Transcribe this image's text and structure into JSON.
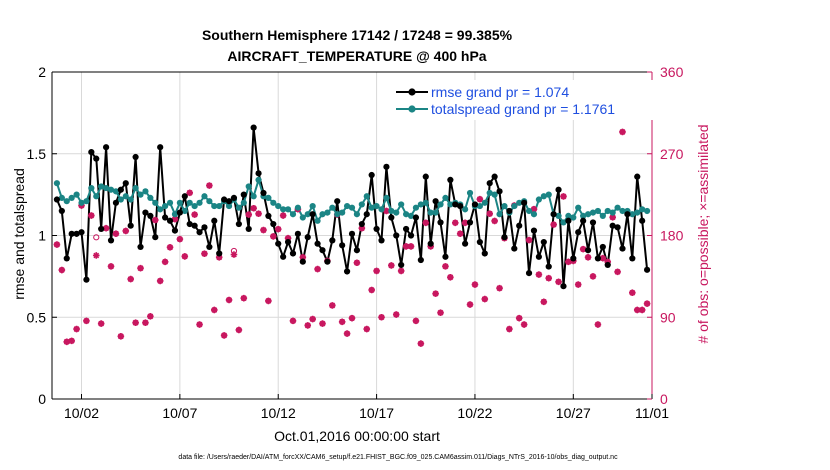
{
  "chart_data": {
    "type": "line",
    "title": "Southern Hemisphere 17142 / 17248 = 99.385%",
    "subtitle": "AIRCRAFT_TEMPERATURE @ 400 hPa",
    "xlabel": "Oct.01,2016 00:00:00 start",
    "ylabel": "rmse and totalspread",
    "y2label": "# of obs: o=possible; ×=assimilated",
    "footnote": "data file: /Users/raeder/DAI/ATM_forcXX/CAM6_setup/f.e21.FHIST_BGC.f09_025.CAM6assim.011/Diags_NTrS_2016-10/obs_diag_output.nc",
    "xlim": [
      0.5,
      31.0
    ],
    "ylim": [
      0,
      2
    ],
    "y2lim": [
      0,
      360
    ],
    "grid": true,
    "legend_position": "top-right",
    "x_ticks": [
      {
        "value": 2,
        "label": "10/02"
      },
      {
        "value": 7,
        "label": "10/07"
      },
      {
        "value": 12,
        "label": "10/12"
      },
      {
        "value": 17,
        "label": "10/17"
      },
      {
        "value": 22,
        "label": "10/22"
      },
      {
        "value": 27,
        "label": "10/27"
      },
      {
        "value": 31,
        "label": "11/01"
      }
    ],
    "y_ticks": [
      "0",
      "0.5",
      "1",
      "1.5",
      "2"
    ],
    "y2_ticks": [
      "0",
      "90",
      "180",
      "270",
      "360"
    ],
    "colors": {
      "rmse": "#000000",
      "totalspread": "#1b8585",
      "obs": "#c8175f",
      "legend_text": "#1f4fe0"
    },
    "series": [
      {
        "name": "rmse grand pr = 1.074",
        "color": "#000000",
        "x": [
          0.75,
          1.0,
          1.25,
          1.5,
          1.75,
          2.0,
          2.25,
          2.5,
          2.75,
          3.0,
          3.25,
          3.5,
          3.75,
          4.0,
          4.25,
          4.5,
          4.75,
          5.0,
          5.25,
          5.5,
          5.75,
          6.0,
          6.25,
          6.5,
          6.75,
          7.0,
          7.25,
          7.5,
          7.75,
          8.0,
          8.25,
          8.5,
          8.75,
          9.0,
          9.25,
          9.5,
          9.75,
          10.0,
          10.25,
          10.5,
          10.75,
          11.0,
          11.25,
          11.5,
          11.75,
          12.0,
          12.25,
          12.5,
          12.75,
          13.0,
          13.25,
          13.5,
          13.75,
          14.0,
          14.25,
          14.5,
          14.75,
          15.0,
          15.25,
          15.5,
          15.75,
          16.0,
          16.25,
          16.5,
          16.75,
          17.0,
          17.25,
          17.5,
          17.75,
          18.0,
          18.25,
          18.5,
          18.75,
          19.0,
          19.25,
          19.5,
          19.75,
          20.0,
          20.25,
          20.5,
          20.75,
          21.0,
          21.25,
          21.5,
          21.75,
          22.0,
          22.25,
          22.5,
          22.75,
          23.0,
          23.25,
          23.5,
          23.75,
          24.0,
          24.25,
          24.5,
          24.75,
          25.0,
          25.25,
          25.5,
          25.75,
          26.0,
          26.25,
          26.5,
          26.75,
          27.0,
          27.25,
          27.5,
          27.75,
          28.0,
          28.25,
          28.5,
          28.75,
          29.0,
          29.25,
          29.5,
          29.75,
          30.0,
          30.25,
          30.5,
          30.75
        ],
        "values": [
          1.22,
          1.15,
          0.86,
          1.01,
          1.01,
          1.02,
          0.73,
          1.51,
          1.47,
          1.04,
          1.54,
          0.97,
          1.2,
          1.28,
          1.32,
          1.06,
          1.48,
          0.93,
          1.14,
          1.12,
          0.99,
          1.54,
          1.11,
          1.09,
          1.03,
          1.14,
          1.24,
          1.07,
          1.06,
          1.02,
          1.05,
          0.93,
          1.09,
          0.89,
          1.22,
          1.21,
          1.23,
          1.07,
          1.25,
          1.04,
          1.66,
          1.38,
          1.26,
          1.12,
          1.07,
          0.95,
          0.87,
          0.96,
          0.89,
          1.01,
          0.84,
          0.99,
          1.13,
          0.95,
          0.91,
          0.84,
          0.97,
          1.21,
          0.94,
          0.78,
          1.01,
          0.91,
          1.07,
          1.13,
          1.37,
          1.04,
          0.97,
          1.42,
          1.11,
          1.0,
          0.82,
          1.04,
          1.0,
          1.11,
          0.85,
          1.36,
          0.95,
          1.21,
          1.08,
          0.87,
          1.34,
          1.19,
          1.18,
          0.95,
          1.08,
          1.19,
          0.96,
          0.89,
          1.32,
          1.36,
          1.27,
          0.99,
          1.15,
          0.92,
          1.06,
          1.2,
          0.77,
          1.03,
          0.87,
          0.96,
          0.81,
          1.13,
          1.28,
          0.69,
          1.09,
          0.86,
          1.02,
          1.09,
          0.91,
          1.08,
          0.86,
          0.93,
          0.82,
          1.06,
          1.05,
          0.92,
          1.13,
          0.86,
          1.36,
          1.09,
          0.79
        ],
        "markers": "filled-circle"
      },
      {
        "name": "totalspread grand pr = 1.1761",
        "color": "#1b8585",
        "x": [
          0.75,
          1.0,
          1.25,
          1.5,
          1.75,
          2.0,
          2.25,
          2.5,
          2.75,
          3.0,
          3.25,
          3.5,
          3.75,
          4.0,
          4.25,
          4.5,
          4.75,
          5.0,
          5.25,
          5.5,
          5.75,
          6.0,
          6.25,
          6.5,
          6.75,
          7.0,
          7.25,
          7.5,
          7.75,
          8.0,
          8.25,
          8.5,
          8.75,
          9.0,
          9.25,
          9.5,
          9.75,
          10.0,
          10.25,
          10.5,
          10.75,
          11.0,
          11.25,
          11.5,
          11.75,
          12.0,
          12.25,
          12.5,
          12.75,
          13.0,
          13.25,
          13.5,
          13.75,
          14.0,
          14.25,
          14.5,
          14.75,
          15.0,
          15.25,
          15.5,
          15.75,
          16.0,
          16.25,
          16.5,
          16.75,
          17.0,
          17.25,
          17.5,
          17.75,
          18.0,
          18.25,
          18.5,
          18.75,
          19.0,
          19.25,
          19.5,
          19.75,
          20.0,
          20.25,
          20.5,
          20.75,
          21.0,
          21.25,
          21.5,
          21.75,
          22.0,
          22.25,
          22.5,
          22.75,
          23.0,
          23.25,
          23.5,
          23.75,
          24.0,
          24.25,
          24.5,
          24.75,
          25.0,
          25.25,
          25.5,
          25.75,
          26.0,
          26.25,
          26.5,
          26.75,
          27.0,
          27.25,
          27.5,
          27.75,
          28.0,
          28.25,
          28.5,
          28.75,
          29.0,
          29.25,
          29.5,
          29.75,
          30.0,
          30.25,
          30.5,
          30.75
        ],
        "values": [
          1.32,
          1.23,
          1.21,
          1.23,
          1.25,
          1.2,
          1.21,
          1.29,
          1.24,
          1.3,
          1.29,
          1.28,
          1.27,
          1.22,
          1.24,
          1.22,
          1.29,
          1.25,
          1.27,
          1.23,
          1.2,
          1.16,
          1.18,
          1.2,
          1.13,
          1.2,
          1.15,
          1.2,
          1.18,
          1.2,
          1.24,
          1.21,
          1.18,
          1.18,
          1.21,
          1.18,
          1.22,
          1.17,
          1.2,
          1.3,
          1.24,
          1.34,
          1.24,
          1.23,
          1.2,
          1.18,
          1.16,
          1.16,
          1.13,
          1.17,
          1.11,
          1.13,
          1.18,
          1.09,
          1.13,
          1.14,
          1.17,
          1.13,
          1.14,
          1.18,
          1.17,
          1.13,
          1.19,
          1.24,
          1.17,
          1.18,
          1.16,
          1.23,
          1.15,
          1.14,
          1.19,
          1.13,
          1.12,
          1.17,
          1.19,
          1.2,
          1.14,
          1.14,
          1.19,
          1.23,
          1.19,
          1.2,
          1.19,
          1.16,
          1.26,
          1.18,
          1.18,
          1.2,
          1.26,
          1.25,
          1.13,
          1.18,
          1.14,
          1.18,
          1.2,
          1.21,
          1.15,
          1.13,
          1.22,
          1.24,
          1.25,
          1.13,
          1.12,
          1.08,
          1.12,
          1.11,
          1.17,
          1.12,
          1.13,
          1.14,
          1.15,
          1.12,
          1.15,
          1.14,
          1.17,
          1.15,
          1.15,
          1.13,
          1.14,
          1.16,
          1.15
        ],
        "markers": "filled-circle"
      },
      {
        "name": "# of obs assimilated",
        "axis": "right",
        "color": "#c8175f",
        "x": [
          0.75,
          1.0,
          1.25,
          1.5,
          1.75,
          2.0,
          2.25,
          2.5,
          2.75,
          3.0,
          3.25,
          3.5,
          3.75,
          4.0,
          4.25,
          4.5,
          4.75,
          5.0,
          5.25,
          5.5,
          5.75,
          6.0,
          6.25,
          6.5,
          6.75,
          7.0,
          7.25,
          7.5,
          7.75,
          8.0,
          8.25,
          8.5,
          8.75,
          9.0,
          9.25,
          9.5,
          9.75,
          10.0,
          10.25,
          10.5,
          10.75,
          11.0,
          11.25,
          11.5,
          11.75,
          12.0,
          12.25,
          12.5,
          12.75,
          13.0,
          13.25,
          13.5,
          13.75,
          14.0,
          14.25,
          14.5,
          14.75,
          15.0,
          15.25,
          15.5,
          15.75,
          16.0,
          16.25,
          16.5,
          16.75,
          17.0,
          17.25,
          17.5,
          17.75,
          18.0,
          18.25,
          18.5,
          18.75,
          19.0,
          19.25,
          19.5,
          19.75,
          20.0,
          20.25,
          20.5,
          20.75,
          21.0,
          21.25,
          21.5,
          21.75,
          22.0,
          22.25,
          22.5,
          22.75,
          23.0,
          23.25,
          23.5,
          23.75,
          24.0,
          24.25,
          24.5,
          24.75,
          25.0,
          25.25,
          25.5,
          25.75,
          26.0,
          26.25,
          26.5,
          26.75,
          27.0,
          27.25,
          27.5,
          27.75,
          28.0,
          28.25,
          28.5,
          28.75,
          29.0,
          29.25,
          29.5,
          29.75,
          30.0,
          30.25,
          30.5,
          30.75
        ],
        "values": [
          170,
          142,
          63,
          64,
          77,
          213,
          86,
          202,
          158,
          83,
          188,
          146,
          182,
          69,
          185,
          132,
          84,
          144,
          84,
          91,
          197,
          130,
          151,
          167,
          198,
          176,
          157,
          227,
          203,
          82,
          160,
          235,
          98,
          156,
          70,
          109,
          159,
          76,
          111,
          203,
          210,
          204,
          186,
          108,
          179,
          187,
          202,
          177,
          86,
          209,
          156,
          81,
          88,
          143,
          83,
          152,
          103,
          203,
          85,
          72,
          89,
          150,
          188,
          77,
          120,
          141,
          90,
          207,
          147,
          93,
          141,
          168,
          168,
          86,
          61,
          194,
          168,
          116,
          95,
          146,
          134,
          194,
          182,
          194,
          104,
          126,
          220,
          110,
          204,
          196,
          122,
          177,
          77,
          213,
          89,
          82,
          175,
          209,
          137,
          107,
          133,
          192,
          129,
          223,
          151,
          152,
          126,
          165,
          156,
          135,
          82,
          155,
          151,
          200,
          140,
          294,
          316,
          117,
          98,
          98,
          105
        ],
        "markers": "star"
      },
      {
        "name": "# of obs possible",
        "axis": "right",
        "color": "#c8175f",
        "x": [
          0.75,
          1.0,
          1.25,
          1.5,
          1.75,
          2.0,
          2.25,
          2.5,
          2.75,
          3.0,
          3.25,
          3.5,
          3.75,
          4.0,
          4.25,
          4.5,
          4.75,
          5.0,
          5.25,
          5.5,
          5.75,
          6.0,
          6.25,
          6.5,
          6.75,
          7.0,
          7.25,
          7.5,
          7.75,
          8.0,
          8.25,
          8.5,
          8.75,
          9.0,
          9.25,
          9.5,
          9.75,
          10.0,
          10.25,
          10.5,
          10.75,
          11.0,
          11.25,
          11.5,
          11.75,
          12.0,
          12.25,
          12.5,
          12.75,
          13.0,
          13.25,
          13.5,
          13.75,
          14.0,
          14.25,
          14.5,
          14.75,
          15.0,
          15.25,
          15.5,
          15.75,
          16.0,
          16.25,
          16.5,
          16.75,
          17.0,
          17.25,
          17.5,
          17.75,
          18.0,
          18.25,
          18.5,
          18.75,
          19.0,
          19.25,
          19.5,
          19.75,
          20.0,
          20.25,
          20.5,
          20.75,
          21.0,
          21.25,
          21.5,
          21.75,
          22.0,
          22.25,
          22.5,
          22.75,
          23.0,
          23.25,
          23.5,
          23.75,
          24.0,
          24.25,
          24.5,
          24.75,
          25.0,
          25.25,
          25.5,
          25.75,
          26.0,
          26.25,
          26.5,
          26.75,
          27.0,
          27.25,
          27.5,
          27.75,
          28.0,
          28.25,
          28.5,
          28.75,
          29.0,
          29.25,
          29.5,
          29.75,
          30.0,
          30.25,
          30.5,
          30.75
        ],
        "values": [
          170,
          142,
          63,
          64,
          77,
          213,
          86,
          202,
          178,
          83,
          188,
          146,
          182,
          69,
          185,
          132,
          84,
          144,
          84,
          91,
          197,
          130,
          151,
          167,
          198,
          176,
          157,
          227,
          203,
          82,
          160,
          235,
          98,
          156,
          70,
          109,
          163,
          76,
          111,
          203,
          210,
          204,
          186,
          108,
          179,
          187,
          202,
          177,
          86,
          209,
          156,
          81,
          88,
          143,
          83,
          152,
          103,
          203,
          85,
          72,
          89,
          150,
          188,
          77,
          120,
          141,
          90,
          207,
          147,
          93,
          141,
          168,
          168,
          86,
          61,
          194,
          168,
          116,
          95,
          146,
          134,
          194,
          182,
          194,
          104,
          126,
          220,
          110,
          204,
          196,
          122,
          177,
          77,
          213,
          89,
          82,
          175,
          209,
          137,
          107,
          133,
          192,
          129,
          223,
          151,
          152,
          126,
          165,
          156,
          135,
          82,
          155,
          151,
          200,
          140,
          294,
          316,
          117,
          98,
          98,
          105
        ],
        "markers": "open-circle"
      }
    ]
  }
}
